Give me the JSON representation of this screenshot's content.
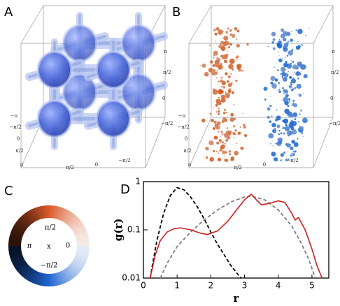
{
  "panel_a": {
    "label": "A",
    "ticks_right": [
      "π",
      "π/2",
      "0",
      "−π/2"
    ],
    "ticks_left": [
      "−π",
      "−π/2",
      "0",
      "π/2",
      "π"
    ],
    "ticks_bottom": [
      "π/2",
      "0",
      "−π/2"
    ]
  },
  "panel_b": {
    "label": "B",
    "ticks_right": [
      "π",
      "π/2",
      "0",
      "−π/2"
    ],
    "ticks_left": [
      "−π",
      "−π/2",
      "0",
      "π/2",
      "π"
    ],
    "ticks_bottom": [
      "π/2",
      "0",
      "−π/2"
    ]
  },
  "panel_c": {
    "label": "C",
    "ring_labels": [
      "π/2",
      "π",
      "x",
      "0",
      "−π/2"
    ]
  },
  "panel_d": {
    "label": "D"
  },
  "chart_data": {
    "type": "line",
    "xlabel": "r",
    "ylabel": "g(r)",
    "yscale": "log",
    "xlim": [
      0,
      5.5
    ],
    "xticks": [
      0,
      1,
      2,
      3,
      4,
      5
    ],
    "ylim": [
      0.01,
      1
    ],
    "yticks": [
      0.01,
      0.1,
      1
    ],
    "series": [
      {
        "color": "#000000",
        "dash": true,
        "x": [
          0.2,
          0.3,
          0.4,
          0.6,
          0.8,
          1.0,
          1.2,
          1.4,
          1.6,
          1.8,
          2.0,
          2.2,
          2.4,
          2.6,
          2.8,
          2.9
        ],
        "values": [
          0.01,
          0.025,
          0.06,
          0.22,
          0.52,
          0.75,
          0.68,
          0.48,
          0.3,
          0.17,
          0.09,
          0.05,
          0.03,
          0.018,
          0.012,
          0.01
        ]
      },
      {
        "color": "#808080",
        "dash": true,
        "x": [
          0.5,
          0.7,
          1.0,
          1.4,
          1.8,
          2.2,
          2.6,
          3.0,
          3.2,
          3.6,
          4.0,
          4.4,
          4.7,
          4.9,
          5.1
        ],
        "values": [
          0.01,
          0.02,
          0.045,
          0.09,
          0.16,
          0.26,
          0.38,
          0.48,
          0.5,
          0.42,
          0.26,
          0.12,
          0.05,
          0.025,
          0.01
        ]
      },
      {
        "color": "#cc1f1f",
        "dash": false,
        "x": [
          0.2,
          0.35,
          0.5,
          0.7,
          0.9,
          1.1,
          1.4,
          1.7,
          1.9,
          2.2,
          2.5,
          2.8,
          3.0,
          3.2,
          3.35,
          3.5,
          3.7,
          4.0,
          4.2,
          4.4,
          4.5,
          4.6,
          4.8,
          5.0,
          5.15,
          5.3
        ],
        "values": [
          0.01,
          0.03,
          0.06,
          0.09,
          0.105,
          0.11,
          0.1,
          0.085,
          0.08,
          0.095,
          0.15,
          0.28,
          0.42,
          0.55,
          0.42,
          0.33,
          0.35,
          0.4,
          0.37,
          0.22,
          0.16,
          0.18,
          0.1,
          0.04,
          0.018,
          0.01
        ]
      }
    ]
  }
}
